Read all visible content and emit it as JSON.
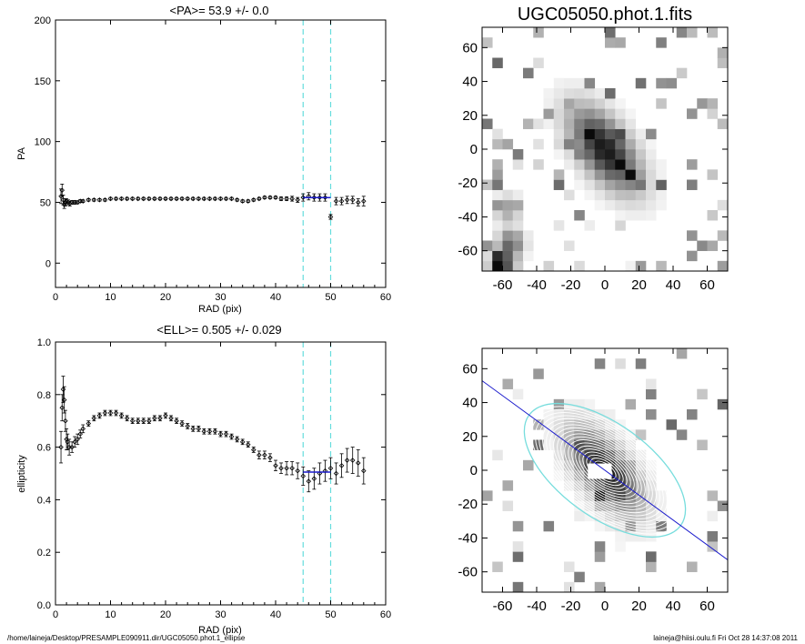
{
  "footer": {
    "left": "/home/laineja/Desktop/PRESAMPLE090911.dir/UGC05050.phot.1_ellipse",
    "right": "laineja@hiisi.oulu.fi  Fri Oct 28 14:37:08 2011"
  },
  "chart_data": [
    {
      "type": "scatter",
      "title": "<PA>=  53.9 +/-   0.0",
      "xlabel": "RAD (pix)",
      "ylabel": "PA",
      "xlim": [
        0,
        60
      ],
      "ylim": [
        -20,
        200
      ],
      "xticks": [
        0,
        10,
        20,
        30,
        40,
        50,
        60
      ],
      "yticks": [
        0,
        50,
        100,
        150,
        200
      ],
      "marker_color": "#000000",
      "fit_line": {
        "x": [
          45,
          50
        ],
        "y": 53.9,
        "color": "#1a1acc"
      },
      "vlines": {
        "x": [
          45,
          50
        ],
        "color": "#66dddd"
      },
      "series": [
        {
          "x": [
            1.0,
            1.2,
            1.4,
            1.6,
            1.8,
            2.0,
            2.3,
            2.6,
            3.0,
            3.5,
            4.0,
            4.5,
            5.0,
            6.0,
            7.0,
            8.0,
            9.0,
            10.0,
            11.0,
            12.0,
            13.0,
            14.0,
            15.0,
            16.0,
            17.0,
            18.0,
            19.0,
            20.0,
            21.0,
            22.0,
            23.0,
            24.0,
            25.0,
            26.0,
            27.0,
            28.0,
            29.0,
            30.0,
            31.0,
            32.0,
            33.0,
            34.0,
            35.0,
            36.0,
            37.0,
            38.0,
            39.0,
            40.0,
            41.0,
            42.0,
            43.0,
            44.0,
            45.0,
            46.0,
            47.0,
            48.0,
            49.0,
            50.0,
            51.0,
            52.0,
            53.0,
            54.0,
            55.0,
            56.0
          ],
          "y": [
            55,
            60,
            52,
            48,
            50,
            51,
            50,
            49,
            50,
            50,
            50,
            51,
            51,
            52,
            52,
            52,
            52,
            53,
            53,
            53,
            53,
            53,
            53,
            53,
            53,
            53,
            53,
            53,
            53,
            53,
            53,
            53,
            53,
            53,
            53,
            53,
            53,
            53,
            53,
            53,
            52,
            51,
            51,
            52,
            53,
            54,
            54,
            54,
            53,
            53,
            53,
            52,
            54,
            55,
            54,
            54,
            54,
            38,
            51,
            51,
            52,
            52,
            50,
            51
          ],
          "err": [
            6,
            5,
            4,
            3,
            3,
            2,
            2,
            2,
            1.5,
            1.5,
            1.2,
            1.2,
            1,
            1,
            1,
            1,
            1,
            1,
            1,
            1,
            1,
            1,
            1,
            1,
            1,
            1,
            1,
            1,
            1,
            1,
            1,
            1,
            1,
            1,
            1,
            1,
            1,
            1,
            1,
            1,
            1,
            1,
            1,
            1,
            1,
            1,
            1,
            1,
            1.5,
            1.5,
            2,
            2,
            3,
            3,
            3,
            3,
            3,
            2,
            3,
            3,
            3,
            3,
            3,
            4
          ]
        }
      ]
    },
    {
      "type": "image",
      "title": "UGC05050.phot.1.fits",
      "xlim": [
        -72,
        72
      ],
      "ylim": [
        -72,
        72
      ],
      "xticks": [
        -60,
        -40,
        -20,
        0,
        20,
        40,
        60
      ],
      "yticks": [
        -60,
        -40,
        -20,
        0,
        20,
        40,
        60
      ],
      "colormap": "gray-inverted",
      "source": {
        "center": [
          0,
          0
        ],
        "pa_deg": 53.9,
        "sigma_major": 20,
        "sigma_minor": 10
      },
      "blobs": [
        [
          -55,
          -55,
          0.6
        ],
        [
          -60,
          -68,
          0.8
        ],
        [
          -57,
          -35,
          0.4
        ]
      ]
    },
    {
      "type": "scatter",
      "title": "<ELL>= 0.505 +/-  0.029",
      "xlabel": "RAD (pix)",
      "ylabel": "ellipticity",
      "xlim": [
        0,
        60
      ],
      "ylim": [
        0,
        1
      ],
      "xticks": [
        0,
        10,
        20,
        30,
        40,
        50,
        60
      ],
      "yticks": [
        0.0,
        0.2,
        0.4,
        0.6,
        0.8,
        1.0
      ],
      "marker_color": "#000000",
      "fit_line": {
        "x": [
          45,
          50
        ],
        "y": 0.505,
        "color": "#1a1acc"
      },
      "vlines": {
        "x": [
          45,
          50
        ],
        "color": "#66dddd"
      },
      "series": [
        {
          "x": [
            1.0,
            1.2,
            1.4,
            1.6,
            1.8,
            2.0,
            2.2,
            2.5,
            3.0,
            3.5,
            4.0,
            4.5,
            5.0,
            6.0,
            7.0,
            8.0,
            9.0,
            10.0,
            11.0,
            12.0,
            13.0,
            14.0,
            15.0,
            16.0,
            17.0,
            18.0,
            19.0,
            20.0,
            21.0,
            22.0,
            23.0,
            24.0,
            25.0,
            26.0,
            27.0,
            28.0,
            29.0,
            30.0,
            31.0,
            32.0,
            33.0,
            34.0,
            35.0,
            36.0,
            37.0,
            38.0,
            39.0,
            40.0,
            41.0,
            42.0,
            43.0,
            44.0,
            45.0,
            46.0,
            47.0,
            48.0,
            49.0,
            50.0,
            51.0,
            52.0,
            53.0,
            54.0,
            55.0,
            56.0
          ],
          "y": [
            0.6,
            0.75,
            0.82,
            0.78,
            0.7,
            0.63,
            0.62,
            0.6,
            0.6,
            0.62,
            0.63,
            0.65,
            0.67,
            0.69,
            0.71,
            0.72,
            0.73,
            0.73,
            0.73,
            0.72,
            0.71,
            0.7,
            0.7,
            0.7,
            0.7,
            0.71,
            0.71,
            0.72,
            0.71,
            0.7,
            0.69,
            0.68,
            0.67,
            0.67,
            0.66,
            0.66,
            0.66,
            0.65,
            0.65,
            0.64,
            0.63,
            0.62,
            0.61,
            0.59,
            0.57,
            0.57,
            0.56,
            0.53,
            0.52,
            0.52,
            0.52,
            0.51,
            0.49,
            0.47,
            0.48,
            0.5,
            0.51,
            0.52,
            0.5,
            0.53,
            0.55,
            0.55,
            0.54,
            0.51
          ],
          "err": [
            0.06,
            0.05,
            0.05,
            0.05,
            0.04,
            0.04,
            0.03,
            0.03,
            0.02,
            0.02,
            0.02,
            0.015,
            0.015,
            0.01,
            0.01,
            0.01,
            0.01,
            0.01,
            0.01,
            0.01,
            0.01,
            0.01,
            0.01,
            0.01,
            0.01,
            0.01,
            0.01,
            0.01,
            0.01,
            0.01,
            0.01,
            0.01,
            0.01,
            0.01,
            0.01,
            0.01,
            0.01,
            0.01,
            0.01,
            0.01,
            0.01,
            0.01,
            0.01,
            0.01,
            0.015,
            0.015,
            0.015,
            0.02,
            0.02,
            0.025,
            0.025,
            0.03,
            0.035,
            0.04,
            0.04,
            0.04,
            0.04,
            0.04,
            0.04,
            0.045,
            0.045,
            0.05,
            0.05,
            0.05
          ]
        }
      ]
    },
    {
      "type": "image",
      "xlim": [
        -72,
        72
      ],
      "ylim": [
        -72,
        72
      ],
      "xticks": [
        -60,
        -40,
        -20,
        0,
        20,
        40,
        60
      ],
      "yticks": [
        -60,
        -40,
        -20,
        0,
        20,
        40,
        60
      ],
      "colormap": "gray-inverted",
      "source": {
        "center": [
          0,
          0
        ],
        "pa_deg": 53.9,
        "sigma_major": 20,
        "sigma_minor": 10
      },
      "ellipses": {
        "count": 22,
        "max_semi_major": 55,
        "ellipticity": 0.505,
        "pa_deg": 53.9,
        "color": "#ffffff",
        "outer_color": "#77dddd"
      },
      "mask": {
        "x": [
          -10,
          4
        ],
        "y": [
          -5,
          4
        ],
        "color": "#ffffff"
      },
      "pa_line": {
        "color": "#1a1acc",
        "pa_deg": 53.9
      }
    }
  ]
}
